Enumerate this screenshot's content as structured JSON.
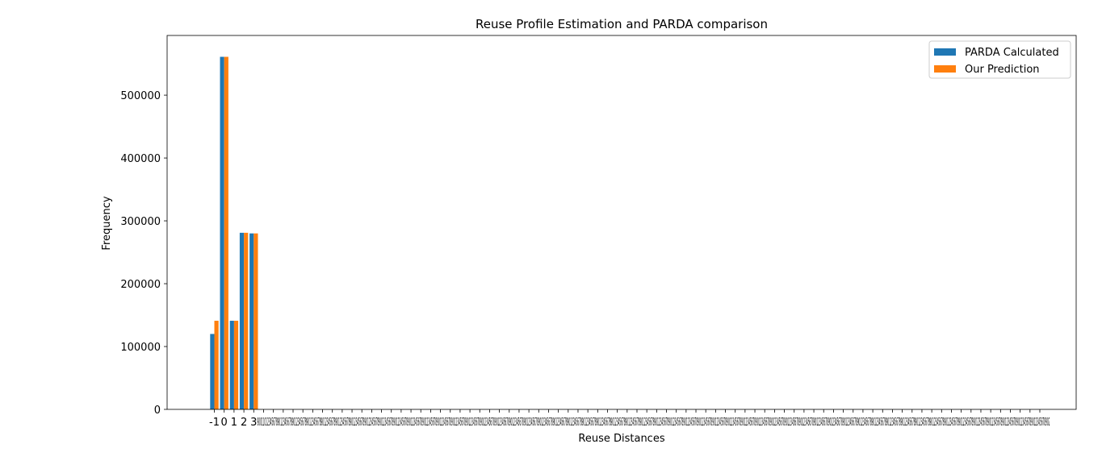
{
  "colors": {
    "series_a": "#1f77b4",
    "series_b": "#ff7f0e"
  },
  "chart_data": {
    "type": "bar",
    "title": "Reuse Profile Estimation and PARDA comparison",
    "xlabel": "Reuse Distances",
    "ylabel": "Frequency",
    "ylim": [
      0,
      595000
    ],
    "yticks": [
      0,
      100000,
      200000,
      300000,
      400000,
      500000
    ],
    "ytick_labels": [
      "0",
      "100000",
      "200000",
      "300000",
      "400000",
      "500000"
    ],
    "grid": false,
    "legend_position": "top-right",
    "categories": [
      "-1",
      "0",
      "1",
      "2",
      "3"
    ],
    "series": [
      {
        "name": "PARDA Calculated",
        "values": [
          120000,
          561000,
          141000,
          281000,
          280000
        ]
      },
      {
        "name": "Our Prediction",
        "values": [
          141000,
          561000,
          141000,
          281000,
          280000
        ]
      }
    ],
    "extra_tick_count": 80,
    "extra_tick_label_text": "1902",
    "extra_tick_label_full": "9001101234567890123456789012345678901234567890123456789012345678901234567890123456789012345678901234567890123456789012345678901234567890123456789012345678901234567890123456789012345678901234567890123456789012345678901234567890123456789012345678901234567890123456789012345678901234567890123456789012345678901234567890123456789012345678901234567890123456789012345678901234567890123456789012345678901234567890123456789012345678901234567890123456789012345678901234567890123456789012345678901234567890123456789012345678901234567890123456789012345678902"
  }
}
